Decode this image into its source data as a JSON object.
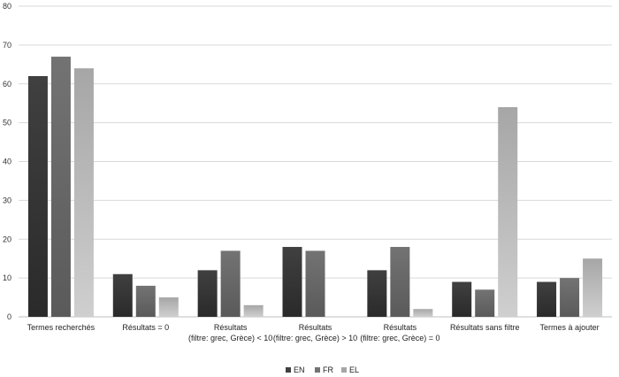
{
  "chart_data": {
    "type": "bar",
    "categories": [
      [
        "Termes recherchés"
      ],
      [
        "Résultats = 0"
      ],
      [
        "Résultats",
        "(filtre: grec, Grèce) < 10"
      ],
      [
        "Résultats",
        "(filtre: grec, Grèce) > 10"
      ],
      [
        "Résultats",
        "(filtre: grec, Grèce) = 0"
      ],
      [
        "Résultats sans filtre"
      ],
      [
        "Termes à ajouter"
      ]
    ],
    "series": [
      {
        "name": "EN",
        "color": "#404040",
        "values": [
          62,
          11,
          12,
          18,
          12,
          9,
          9
        ]
      },
      {
        "name": "FR",
        "color": "#737373",
        "values": [
          67,
          8,
          17,
          17,
          18,
          7,
          10
        ]
      },
      {
        "name": "EL",
        "color": "#a6a6a6",
        "values": [
          64,
          5,
          3,
          0,
          2,
          54,
          15
        ]
      }
    ],
    "ylim": [
      0,
      80
    ],
    "yticks": [
      0,
      10,
      20,
      30,
      40,
      50,
      60,
      70,
      80
    ],
    "grid": true,
    "legend": "bottom"
  }
}
